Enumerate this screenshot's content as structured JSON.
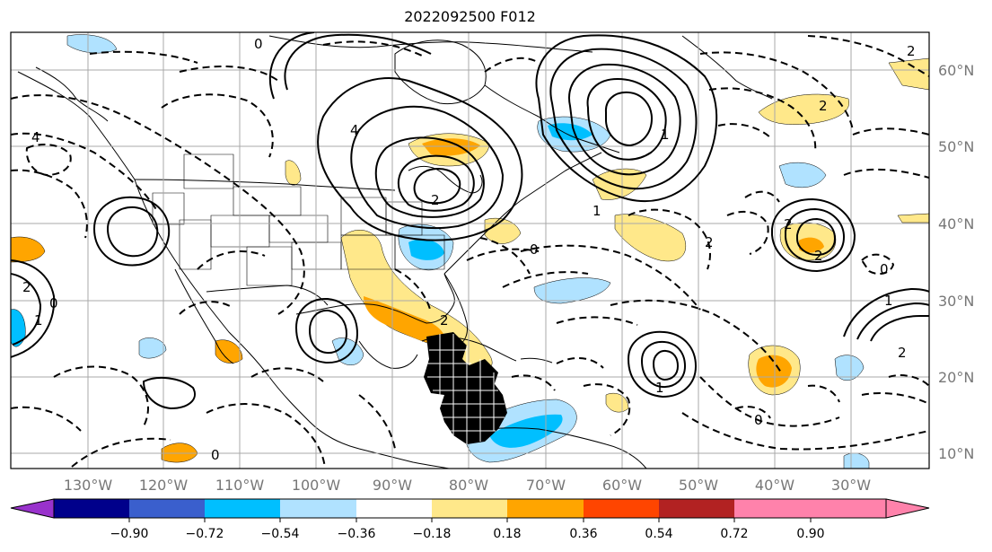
{
  "title": "2022092500 F012",
  "map": {
    "lat_labels": [
      "60°N",
      "50°N",
      "40°N",
      "30°N",
      "20°N",
      "10°N"
    ],
    "lat_values": [
      60,
      50,
      40,
      30,
      20,
      10
    ],
    "lon_labels": [
      "130°W",
      "120°W",
      "110°W",
      "100°W",
      "90°W",
      "80°W",
      "70°W",
      "60°W",
      "50°W",
      "40°W",
      "30°W"
    ],
    "lon_values": [
      -130,
      -120,
      -110,
      -100,
      -90,
      -80,
      -70,
      -60,
      -50,
      -40,
      -30
    ],
    "contour_labels": [
      "0",
      "2",
      "4",
      "1",
      "1",
      "0",
      "2",
      "1",
      "0",
      "2",
      "2",
      "0",
      "1",
      "2",
      "1",
      "0",
      "2",
      "2",
      "0",
      "2",
      "2",
      "4"
    ],
    "grid": true
  },
  "colorbar": {
    "ticks": [
      "−0.90",
      "−0.72",
      "−0.54",
      "−0.36",
      "−0.18",
      "0.18",
      "0.36",
      "0.54",
      "0.72",
      "0.90"
    ],
    "colors": [
      "#9932cc",
      "#00008b",
      "#3a5fcd",
      "#00bfff",
      "#b0e2ff",
      "#ffffff",
      "#ffe88a",
      "#ffa500",
      "#ff4500",
      "#b22222",
      "#ff82ab"
    ],
    "extend": "both"
  }
}
